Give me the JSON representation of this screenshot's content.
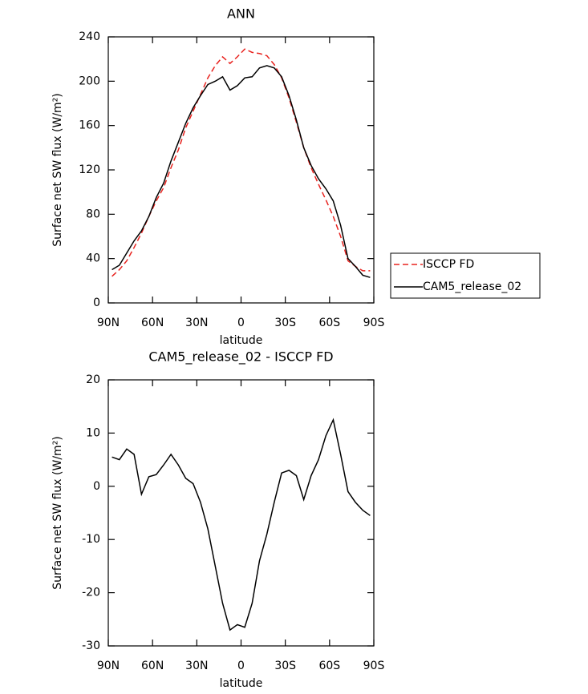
{
  "chart_data": [
    {
      "type": "line",
      "title": "ANN",
      "xlabel": "latitude",
      "ylabel": "Surface net SW flux (W/m²)",
      "x": [
        87.5,
        82.5,
        77.5,
        72.5,
        67.5,
        62.5,
        57.5,
        52.5,
        47.5,
        42.5,
        37.5,
        32.5,
        27.5,
        22.5,
        17.5,
        12.5,
        7.5,
        2.5,
        -2.5,
        -7.5,
        -12.5,
        -17.5,
        -22.5,
        -27.5,
        -32.5,
        -37.5,
        -42.5,
        -47.5,
        -52.5,
        -57.5,
        -62.5,
        -67.5,
        -72.5,
        -77.5,
        -82.5,
        -87.5
      ],
      "series": [
        {
          "name": "ISCCP FD",
          "color": "#e8231f",
          "dash": true,
          "values": [
            24,
            30,
            38,
            50,
            63,
            78,
            92,
            104,
            122,
            138,
            158,
            173,
            188,
            203,
            214,
            222,
            216,
            222,
            229,
            226,
            225,
            223,
            215,
            203,
            185,
            163,
            140,
            122,
            107,
            93,
            78,
            60,
            38,
            33,
            29,
            29
          ]
        },
        {
          "name": "CAM5_release_02",
          "color": "#000000",
          "dash": false,
          "values": [
            30,
            34,
            45,
            56,
            65,
            78,
            95,
            108,
            128,
            145,
            162,
            176,
            187,
            197,
            200,
            204,
            192,
            196,
            203,
            204,
            212,
            214,
            212,
            204,
            187,
            165,
            140,
            124,
            112,
            103,
            92,
            70,
            40,
            33,
            25,
            23
          ]
        }
      ],
      "xlim": [
        90,
        -90
      ],
      "xticks": [
        {
          "value": 90,
          "label": "90N"
        },
        {
          "value": 60,
          "label": "60N"
        },
        {
          "value": 30,
          "label": "30N"
        },
        0,
        {
          "value": -30,
          "label": "30S"
        },
        {
          "value": -60,
          "label": "60S"
        },
        {
          "value": -90,
          "label": "90S"
        }
      ],
      "ylim": [
        0,
        240
      ],
      "yticks": [
        0,
        40,
        80,
        120,
        160,
        200,
        240
      ],
      "legend": "right"
    },
    {
      "type": "line",
      "title": "CAM5_release_02 - ISCCP FD",
      "xlabel": "latitude",
      "ylabel": "Surface net SW flux (W/m²)",
      "x": [
        87.5,
        82.5,
        77.5,
        72.5,
        67.5,
        62.5,
        57.5,
        52.5,
        47.5,
        42.5,
        37.5,
        32.5,
        27.5,
        22.5,
        17.5,
        12.5,
        7.5,
        2.5,
        -2.5,
        -7.5,
        -12.5,
        -17.5,
        -22.5,
        -27.5,
        -32.5,
        -37.5,
        -42.5,
        -47.5,
        -52.5,
        -57.5,
        -62.5,
        -67.5,
        -72.5,
        -77.5,
        -82.5,
        -87.5
      ],
      "series": [
        {
          "color": "#000000",
          "dash": false,
          "values": [
            5.5,
            5,
            7,
            6,
            -1.5,
            1.8,
            2.2,
            4,
            6,
            4,
            1.5,
            0.5,
            -3,
            -8,
            -15,
            -22,
            -27,
            -26,
            -26.5,
            -22,
            -14,
            -9,
            -3,
            2.5,
            3,
            2,
            -2.5,
            2,
            5,
            9.5,
            12.5,
            6,
            -1,
            -3,
            -4.5,
            -5.5
          ]
        }
      ],
      "xlim": [
        90,
        -90
      ],
      "xticks": [
        {
          "value": 90,
          "label": "90N"
        },
        {
          "value": 60,
          "label": "60N"
        },
        {
          "value": 30,
          "label": "30N"
        },
        0,
        {
          "value": -30,
          "label": "30S"
        },
        {
          "value": -60,
          "label": "60S"
        },
        {
          "value": -90,
          "label": "90S"
        }
      ],
      "ylim": [
        -30,
        20
      ],
      "yticks": [
        -30,
        -20,
        -10,
        0,
        10,
        20
      ]
    }
  ]
}
